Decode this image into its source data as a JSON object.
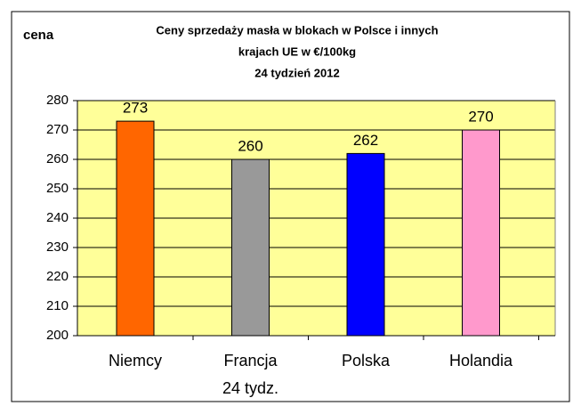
{
  "chart_data": {
    "type": "bar",
    "title": [
      "Ceny sprzedaży masła w blokach w Polsce i  innych",
      "krajach UE w €/100kg",
      "24 tydzień 2012"
    ],
    "y_label": "cena",
    "x_label": "24 tydz.",
    "categories": [
      "Niemcy",
      "Francja",
      "Polska",
      "Holandia"
    ],
    "values": [
      273,
      260,
      262,
      270
    ],
    "colors": [
      "#ff6600",
      "#999999",
      "#0000ff",
      "#ff99cc"
    ],
    "ylim": [
      200,
      280
    ],
    "yticks": [
      200,
      210,
      220,
      230,
      240,
      250,
      260,
      270,
      280
    ],
    "grid": true
  }
}
